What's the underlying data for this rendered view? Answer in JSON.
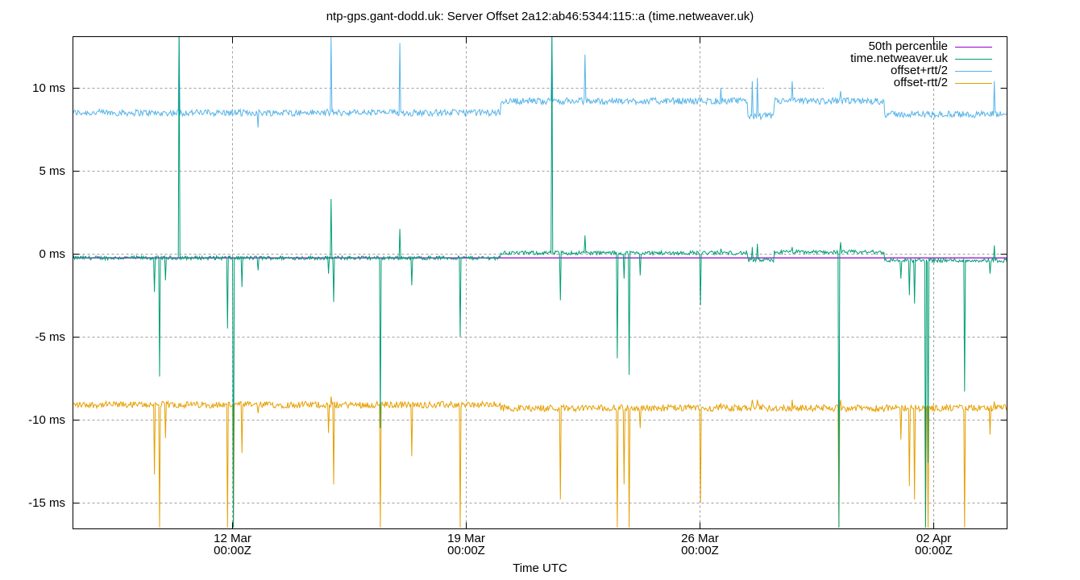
{
  "title": "ntp-gps.gant-dodd.uk: Server Offset 2a12:ab46:5344:115::a (time.netweaver.uk)",
  "chart_data": {
    "type": "line",
    "title": "ntp-gps.gant-dodd.uk: Server Offset 2a12:ab46:5344:115::a (time.netweaver.uk)",
    "xlabel": "Time UTC",
    "ylabel": "",
    "ylim": [
      -16.5,
      13.2
    ],
    "grid": true,
    "legend_position": "top-right inside",
    "y_ticks": [
      {
        "value": 10,
        "label": "10 ms"
      },
      {
        "value": 5,
        "label": "5 ms"
      },
      {
        "value": 0,
        "label": "0 ms"
      },
      {
        "value": -5,
        "label": "-5 ms"
      },
      {
        "value": -10,
        "label": "-10 ms"
      },
      {
        "value": -15,
        "label": "-15 ms"
      }
    ],
    "x_ticks": [
      {
        "day": 4.78,
        "label1": "12 Mar",
        "label2": "00:00Z"
      },
      {
        "day": 11.78,
        "label1": "19 Mar",
        "label2": "00:00Z"
      },
      {
        "day": 18.78,
        "label1": "26 Mar",
        "label2": "00:00Z"
      },
      {
        "day": 25.78,
        "label1": "02 Apr",
        "label2": "00:00Z"
      }
    ],
    "x_range_days": [
      0,
      27.98
    ],
    "x_range_label": [
      "~07 Mar 05:00Z",
      "~04 Apr 05:00Z"
    ],
    "series": [
      {
        "name": "50th percentile",
        "color": "#9400d3",
        "constant": -0.25
      },
      {
        "name": "time.netweaver.uk",
        "color": "#009e73",
        "baseline_segments": [
          {
            "from": 0,
            "to": 12.8,
            "value": -0.25
          },
          {
            "from": 12.8,
            "to": 20.2,
            "value": 0.05
          },
          {
            "from": 20.2,
            "to": 21.0,
            "value": -0.4
          },
          {
            "from": 21.0,
            "to": 24.3,
            "value": 0.1
          },
          {
            "from": 24.3,
            "to": 27.98,
            "value": -0.4
          }
        ],
        "noise": 0.12
      },
      {
        "name": "offset+rtt/2",
        "color": "#56b4e9",
        "baseline_segments": [
          {
            "from": 0,
            "to": 12.8,
            "value": 8.5
          },
          {
            "from": 12.8,
            "to": 20.2,
            "value": 9.2
          },
          {
            "from": 20.2,
            "to": 21.0,
            "value": 8.3
          },
          {
            "from": 21.0,
            "to": 24.3,
            "value": 9.2
          },
          {
            "from": 24.3,
            "to": 27.98,
            "value": 8.4
          }
        ],
        "noise": 0.2
      },
      {
        "name": "offset-rtt/2",
        "color": "#e69f00",
        "baseline_segments": [
          {
            "from": 0,
            "to": 12.8,
            "value": -9.1
          },
          {
            "from": 12.8,
            "to": 27.98,
            "value": -9.3
          }
        ],
        "noise": 0.2
      }
    ],
    "spikes": [
      {
        "day": 2.45,
        "offset": -2.3,
        "plus": 8.4,
        "minus": -13.3
      },
      {
        "day": 2.6,
        "offset": -7.4,
        "plus": 8.4,
        "minus": -16.5
      },
      {
        "day": 2.78,
        "offset": -1.6,
        "plus": 8.5,
        "minus": -11.1
      },
      {
        "day": 3.18,
        "offset": 13.2,
        "plus": 13.2,
        "minus": -9.0
      },
      {
        "day": 4.63,
        "offset": -4.5,
        "plus": 8.5,
        "minus": -16.5
      },
      {
        "day": 4.8,
        "offset": -16.5,
        "plus": 8.4,
        "minus": -16.5
      },
      {
        "day": 5.05,
        "offset": -2.0,
        "plus": 8.3,
        "minus": -12.0
      },
      {
        "day": 5.55,
        "offset": -1.0,
        "plus": 7.6,
        "minus": -9.6
      },
      {
        "day": 7.65,
        "offset": -1.2,
        "plus": 8.5,
        "minus": -10.8
      },
      {
        "day": 7.72,
        "offset": 3.3,
        "plus": 13.2,
        "minus": -8.6
      },
      {
        "day": 7.82,
        "offset": -2.9,
        "plus": 8.4,
        "minus": -13.9
      },
      {
        "day": 9.2,
        "offset": -10.5,
        "plus": 8.5,
        "minus": -16.5
      },
      {
        "day": 9.8,
        "offset": 1.5,
        "plus": 12.7,
        "minus": -9.0
      },
      {
        "day": 10.15,
        "offset": -1.9,
        "plus": 8.3,
        "minus": -12.2
      },
      {
        "day": 11.6,
        "offset": -5.0,
        "plus": 8.6,
        "minus": -16.5
      },
      {
        "day": 14.35,
        "offset": 13.2,
        "plus": 13.2,
        "minus": -9.2
      },
      {
        "day": 14.6,
        "offset": -2.8,
        "plus": 9.2,
        "minus": -14.8
      },
      {
        "day": 15.35,
        "offset": 1.1,
        "plus": 12.0,
        "minus": -9.2
      },
      {
        "day": 16.3,
        "offset": -6.3,
        "plus": 9.2,
        "minus": -16.5
      },
      {
        "day": 16.5,
        "offset": -1.5,
        "plus": 9.1,
        "minus": -13.9
      },
      {
        "day": 16.65,
        "offset": -7.3,
        "plus": 9.2,
        "minus": -16.5
      },
      {
        "day": 17.0,
        "offset": -1.3,
        "plus": 9.2,
        "minus": -10.5
      },
      {
        "day": 18.8,
        "offset": -3.1,
        "plus": 9.2,
        "minus": -15.0
      },
      {
        "day": 19.4,
        "offset": 0.3,
        "plus": 10.0,
        "minus": -9.0
      },
      {
        "day": 20.35,
        "offset": 0.4,
        "plus": 10.4,
        "minus": -8.8
      },
      {
        "day": 20.5,
        "offset": 0.6,
        "plus": 10.6,
        "minus": -8.8
      },
      {
        "day": 21.55,
        "offset": 0.4,
        "plus": 10.4,
        "minus": -8.8
      },
      {
        "day": 23.0,
        "offset": 0.7,
        "plus": 9.8,
        "minus": -8.8
      },
      {
        "day": 22.95,
        "offset": -16.5,
        "plus": 9.2,
        "minus": -16.5
      },
      {
        "day": 24.8,
        "offset": -1.5,
        "plus": 8.4,
        "minus": -11.2
      },
      {
        "day": 25.05,
        "offset": -2.5,
        "plus": 8.4,
        "minus": -14.0
      },
      {
        "day": 25.2,
        "offset": -3.0,
        "plus": 8.5,
        "minus": -14.8
      },
      {
        "day": 25.55,
        "offset": -16.5,
        "plus": 8.4,
        "minus": -16.5
      },
      {
        "day": 25.62,
        "offset": -12.6,
        "plus": 8.4,
        "minus": -16.5
      },
      {
        "day": 26.7,
        "offset": -8.3,
        "plus": 8.4,
        "minus": -16.5
      },
      {
        "day": 27.48,
        "offset": -1.2,
        "plus": 8.3,
        "minus": -10.9
      },
      {
        "day": 27.6,
        "offset": 0.5,
        "plus": 10.4,
        "minus": -8.9
      }
    ]
  },
  "legend": {
    "items": [
      {
        "label": "50th percentile",
        "color": "#9400d3"
      },
      {
        "label": "time.netweaver.uk",
        "color": "#009e73"
      },
      {
        "label": "offset+rtt/2",
        "color": "#56b4e9"
      },
      {
        "label": "offset-rtt/2",
        "color": "#e69f00"
      }
    ]
  },
  "axis": {
    "xlabel": "Time UTC"
  }
}
